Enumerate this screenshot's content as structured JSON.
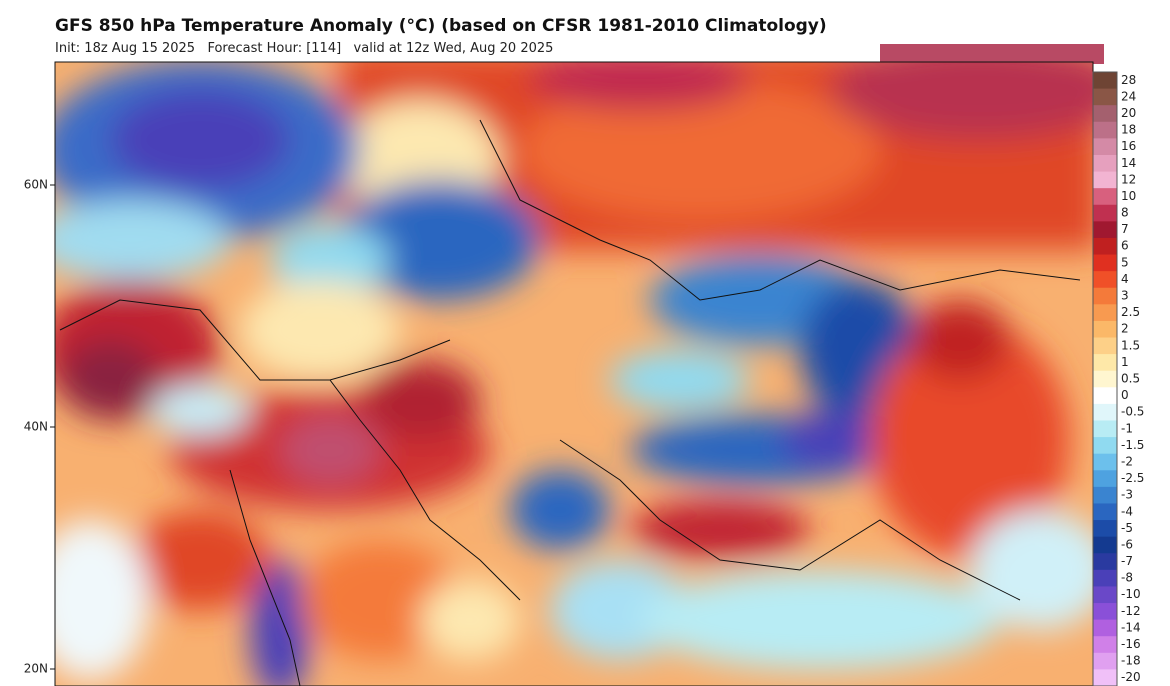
{
  "header": {
    "title": "GFS 850 hPa Temperature Anomaly (°C) (based on CFSR 1981-2010 Climatology)",
    "subtitle": "Init: 18z Aug 15 2025   Forecast Hour: [114]   valid at 12z Wed, Aug 20 2025"
  },
  "latitude_labels": [
    "60N",
    "40N",
    "20N"
  ],
  "colorbar": [
    {
      "label": "28",
      "color": "#6e4434"
    },
    {
      "label": "24",
      "color": "#8a5646"
    },
    {
      "label": "20",
      "color": "#a4606e"
    },
    {
      "label": "18",
      "color": "#bc7088"
    },
    {
      "label": "16",
      "color": "#d48aa6"
    },
    {
      "label": "14",
      "color": "#e6a0be"
    },
    {
      "label": "12",
      "color": "#f2b4d2"
    },
    {
      "label": "10",
      "color": "#d8607e"
    },
    {
      "label": "8",
      "color": "#c03050"
    },
    {
      "label": "7",
      "color": "#a01830"
    },
    {
      "label": "6",
      "color": "#c02020"
    },
    {
      "label": "5",
      "color": "#e03020"
    },
    {
      "label": "4",
      "color": "#f05028"
    },
    {
      "label": "3",
      "color": "#f47a3a"
    },
    {
      "label": "2.5",
      "color": "#f89a50"
    },
    {
      "label": "2",
      "color": "#fbb868"
    },
    {
      "label": "1.5",
      "color": "#fdd088"
    },
    {
      "label": "1",
      "color": "#fee8a8"
    },
    {
      "label": "0.5",
      "color": "#fff6d0"
    },
    {
      "label": "0",
      "color": "#ffffff"
    },
    {
      "label": "-0.5",
      "color": "#e0f6fa"
    },
    {
      "label": "-1",
      "color": "#b8ecf4"
    },
    {
      "label": "-1.5",
      "color": "#90daf0"
    },
    {
      "label": "-2",
      "color": "#6cc0ec"
    },
    {
      "label": "-2.5",
      "color": "#4ea2e0"
    },
    {
      "label": "-3",
      "color": "#3a84d0"
    },
    {
      "label": "-4",
      "color": "#2a66c0"
    },
    {
      "label": "-5",
      "color": "#1c4ca8"
    },
    {
      "label": "-6",
      "color": "#143a90"
    },
    {
      "label": "-7",
      "color": "#2a3aa0"
    },
    {
      "label": "-8",
      "color": "#4a40b8"
    },
    {
      "label": "-10",
      "color": "#6a48c8"
    },
    {
      "label": "-12",
      "color": "#8a50d8"
    },
    {
      "label": "-14",
      "color": "#b060e0"
    },
    {
      "label": "-16",
      "color": "#d080e8"
    },
    {
      "label": "-18",
      "color": "#e0a0f0"
    },
    {
      "label": "-20",
      "color": "#f0c0f8"
    }
  ]
}
